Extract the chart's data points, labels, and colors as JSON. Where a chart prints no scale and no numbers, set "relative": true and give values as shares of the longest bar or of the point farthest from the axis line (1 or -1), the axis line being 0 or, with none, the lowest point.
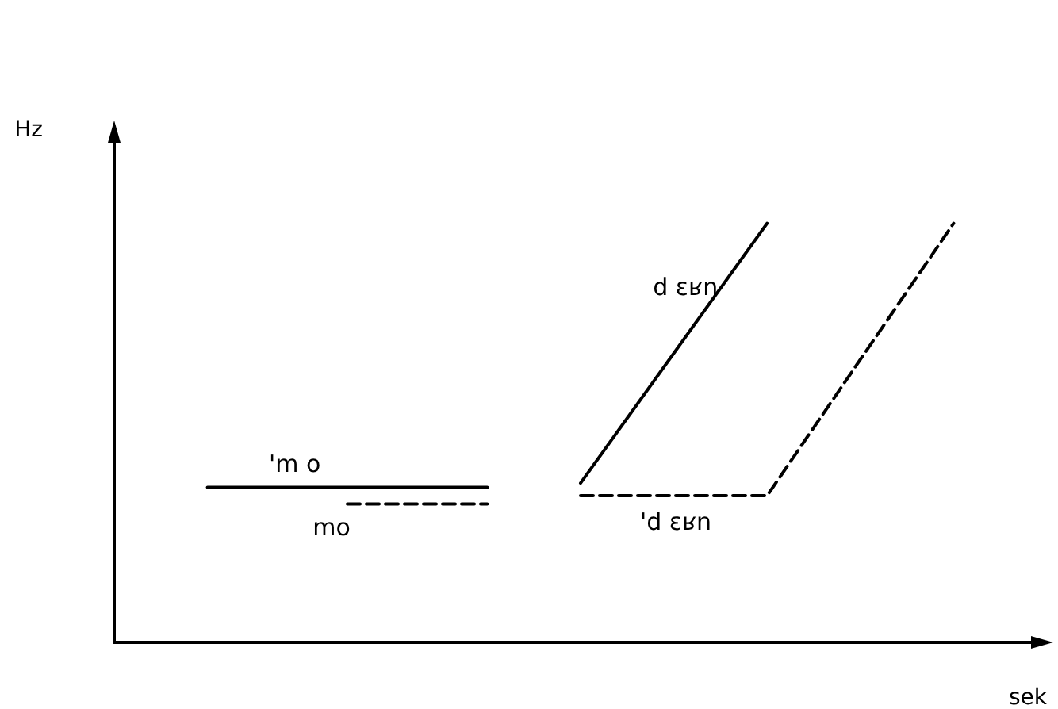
{
  "chart_data": {
    "type": "line",
    "relative": true,
    "xlabel": "sek",
    "ylabel": "Hz",
    "marker": "none",
    "grid": false,
    "legend": false,
    "categories": [
      null,
      null,
      null,
      null,
      null,
      null,
      null,
      null,
      null,
      null,
      null,
      null,
      null,
      null,
      null,
      null,
      null,
      null,
      null,
      null,
      null
    ],
    "series": [
      {
        "name": "'m o",
        "color": "#000000",
        "line_style": "solid",
        "values": [
          null,
          null,
          0.37,
          null,
          null,
          null,
          null,
          null,
          0.37,
          null,
          null,
          null,
          null,
          null,
          null,
          null,
          null,
          null,
          null,
          null,
          null
        ]
      },
      {
        "name": "mo",
        "color": "#000000",
        "line_style": "dashed",
        "values": [
          null,
          null,
          null,
          null,
          null,
          0.33,
          null,
          null,
          0.33,
          null,
          null,
          null,
          null,
          null,
          null,
          null,
          null,
          null,
          null,
          null,
          null
        ]
      },
      {
        "name": "d ɛʁn",
        "color": "#000000",
        "line_style": "solid",
        "values": [
          null,
          null,
          null,
          null,
          null,
          null,
          null,
          null,
          null,
          null,
          0.38,
          null,
          null,
          null,
          1,
          null,
          null,
          null,
          null,
          null,
          null
        ]
      },
      {
        "name": "'d ɛʁn",
        "color": "#000000",
        "line_style": "dashed",
        "values": [
          null,
          null,
          null,
          null,
          null,
          null,
          null,
          null,
          null,
          null,
          0.35,
          null,
          null,
          null,
          0.35,
          null,
          null,
          null,
          1,
          null,
          null
        ]
      }
    ]
  }
}
